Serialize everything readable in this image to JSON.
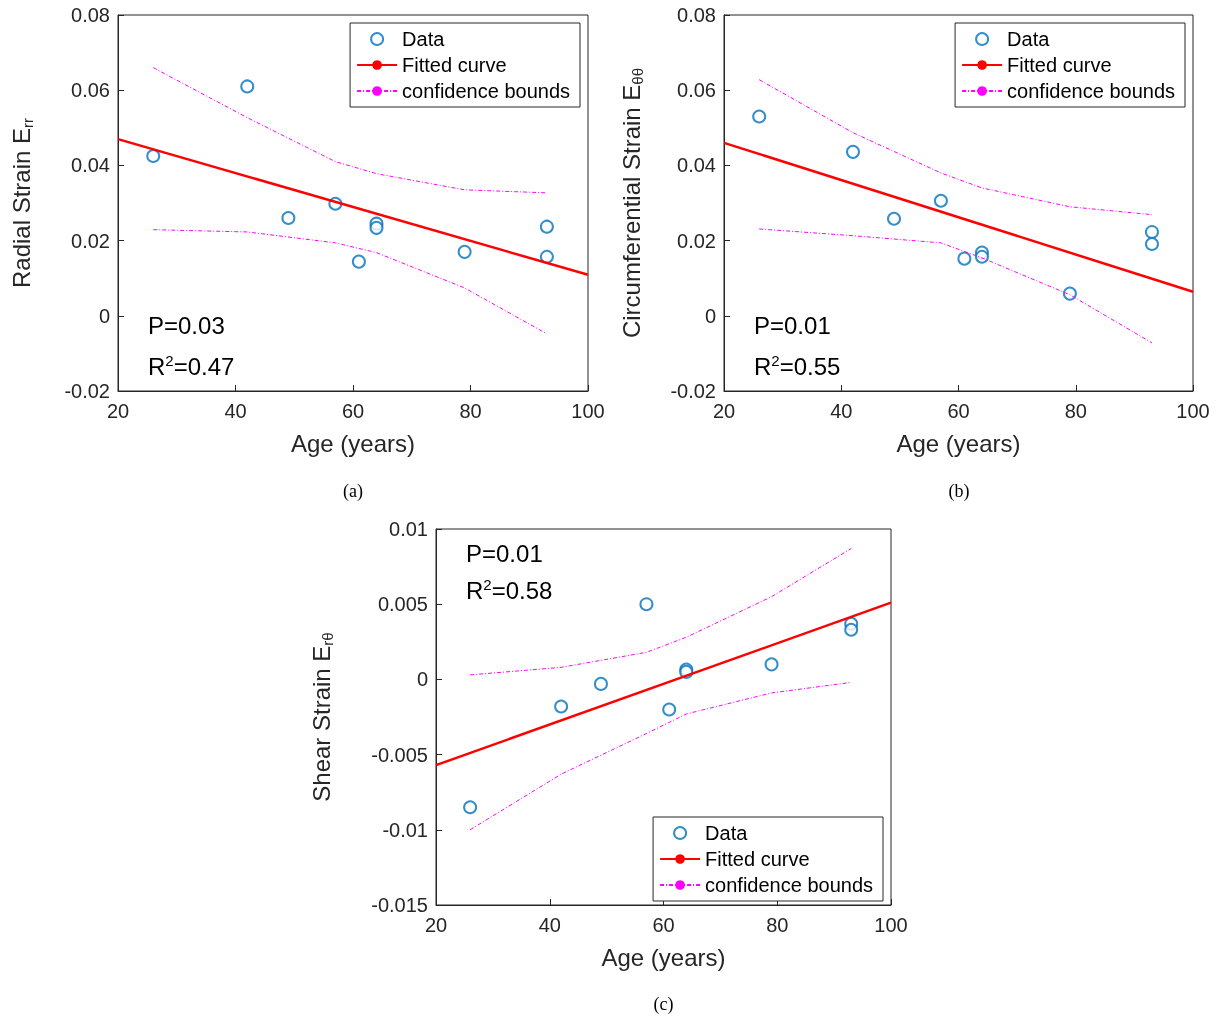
{
  "chart_data": [
    {
      "type": "scatter",
      "xlabel": "Age (years)",
      "ylabel": "Radial Strain E$_{rr}$",
      "xlim": [
        20,
        100
      ],
      "xticks": [
        20,
        40,
        60,
        80,
        100
      ],
      "ylim": [
        -0.02,
        0.08
      ],
      "yticks": [
        -0.02,
        0,
        0.02,
        0.04,
        0.06,
        0.08
      ],
      "grid": false,
      "legend": "top right",
      "annotations": [
        "P=0.03",
        "R$^{2}$=0.47",
        "(a)"
      ],
      "series": [
        {
          "name": "Data",
          "marker": "circle",
          "color": "#0072bd",
          "x": [
            26,
            42,
            49,
            57,
            64,
            64,
            61,
            79,
            93,
            93
          ],
          "values": [
            0.0425,
            0.061,
            0.026,
            0.0298,
            0.0245,
            0.0234,
            0.0144,
            0.017,
            0.0237,
            0.0157
          ]
        },
        {
          "name": "Fitted curve",
          "type": "line",
          "marker": "none",
          "line_style": "solid",
          "color": "#ff0000",
          "x": [
            20,
            100
          ],
          "values": [
            0.047,
            0.0109
          ]
        },
        {
          "name": "confidence bounds",
          "type": "line",
          "marker": "none",
          "line_style": "dashed",
          "color": "#ff00ff",
          "x": [
            26,
            42,
            57,
            64,
            79,
            93
          ],
          "values": [
            0.066,
            0.0527,
            0.041,
            0.0378,
            0.0335,
            0.0327
          ]
        },
        {
          "type": "line",
          "marker": "none",
          "line_style": "dashed",
          "color": "#ff00ff",
          "x": [
            26,
            42,
            57,
            64,
            79,
            93
          ],
          "values": [
            0.0229,
            0.0223,
            0.0194,
            0.0168,
            0.0074,
            -0.0048
          ]
        }
      ]
    },
    {
      "type": "scatter",
      "xlabel": "Age (years)",
      "ylabel": "Circumferential Strain E$_{θθ}$",
      "xlim": [
        20,
        100
      ],
      "xticks": [
        20,
        40,
        60,
        80,
        100
      ],
      "ylim": [
        -0.02,
        0.08
      ],
      "yticks": [
        -0.02,
        0,
        0.02,
        0.04,
        0.06,
        0.08
      ],
      "grid": false,
      "legend": "top right",
      "annotations": [
        "P=0.01",
        "R$^{2}$=0.55",
        "(b)"
      ],
      "series": [
        {
          "name": "Data",
          "marker": "circle",
          "color": "#0072bd",
          "x": [
            26,
            42,
            49,
            57,
            61,
            64,
            64,
            79,
            93,
            93
          ],
          "values": [
            0.053,
            0.0436,
            0.0258,
            0.0306,
            0.0152,
            0.0168,
            0.0157,
            0.0059,
            0.0223,
            0.0191
          ]
        },
        {
          "name": "Fitted curve",
          "type": "line",
          "marker": "none",
          "line_style": "solid",
          "color": "#ff0000",
          "x": [
            20,
            100
          ],
          "values": [
            0.046,
            0.0064
          ]
        },
        {
          "name": "confidence bounds",
          "type": "line",
          "marker": "none",
          "line_style": "dashed",
          "color": "#ff00ff",
          "x": [
            26,
            42,
            57,
            64,
            79,
            93
          ],
          "values": [
            0.0628,
            0.0487,
            0.038,
            0.034,
            0.029,
            0.0269
          ]
        },
        {
          "type": "line",
          "marker": "none",
          "line_style": "dashed",
          "color": "#ff00ff",
          "x": [
            26,
            42,
            57,
            64,
            79,
            93
          ],
          "values": [
            0.0231,
            0.0213,
            0.0194,
            0.0154,
            0.0056,
            -0.0072
          ]
        }
      ]
    },
    {
      "type": "scatter",
      "xlabel": "Age (years)",
      "ylabel": "Shear Strain E$_{rθ}$",
      "xlim": [
        20,
        100
      ],
      "xticks": [
        20,
        40,
        60,
        80,
        100
      ],
      "ylim": [
        -0.015,
        0.01
      ],
      "yticks": [
        -0.015,
        -0.01,
        -0.005,
        0,
        0.005,
        0.01
      ],
      "grid": false,
      "legend": "bottom right",
      "annotations": [
        "P=0.01",
        "R$^{2}$=0.58",
        "(c)"
      ],
      "series": [
        {
          "name": "Data",
          "marker": "circle",
          "color": "#0072bd",
          "x": [
            26,
            42,
            49,
            57,
            61,
            64,
            64,
            79,
            93,
            93
          ],
          "values": [
            -0.0085,
            -0.0018,
            -0.0003,
            0.005,
            -0.002,
            0.00066,
            0.0005,
            0.001,
            0.0037,
            0.0033
          ]
        },
        {
          "name": "Fitted curve",
          "type": "line",
          "marker": "none",
          "line_style": "solid",
          "color": "#ff0000",
          "x": [
            20,
            100
          ],
          "values": [
            -0.0057,
            0.0051
          ]
        },
        {
          "name": "confidence bounds",
          "type": "line",
          "marker": "none",
          "line_style": "dashed",
          "color": "#ff00ff",
          "x": [
            26,
            42,
            57,
            64,
            79,
            93
          ],
          "values": [
            0.0003,
            0.0008,
            0.0018,
            0.0028,
            0.0055,
            0.0087
          ]
        },
        {
          "type": "line",
          "marker": "none",
          "line_style": "dashed",
          "color": "#ff00ff",
          "x": [
            26,
            42,
            57,
            64,
            79,
            93
          ],
          "values": [
            -0.01,
            -0.0063,
            -0.0036,
            -0.0023,
            -0.0009,
            -0.0002
          ]
        }
      ]
    }
  ]
}
